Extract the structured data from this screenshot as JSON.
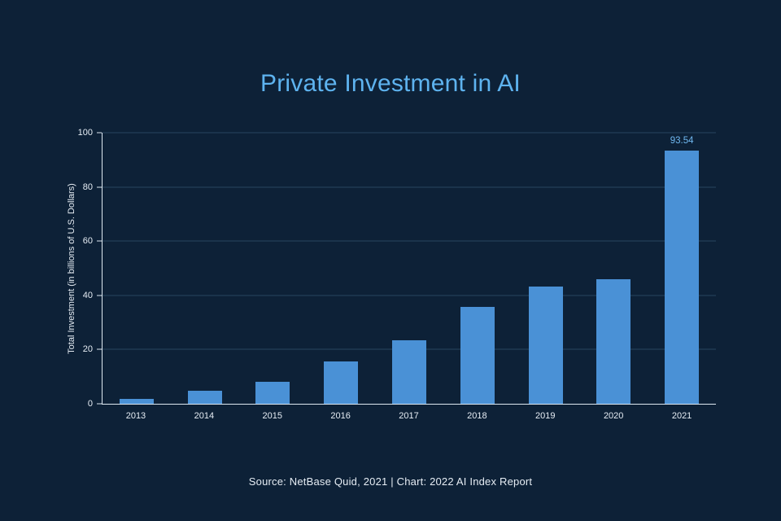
{
  "title": "Private Investment in AI",
  "source": "Source: NetBase Quid, 2021 | Chart: 2022 AI Index Report",
  "colors": {
    "background": "#0d2137",
    "title": "#5eb3ef",
    "bar": "#4a91d6",
    "axis": "#dde8f1",
    "gridline": "#26455f",
    "tick_text": "#e6edf4",
    "value_label": "#70b8f0"
  },
  "chart_data": {
    "type": "bar",
    "title": "Private Investment in AI",
    "categories": [
      "2013",
      "2014",
      "2015",
      "2016",
      "2017",
      "2018",
      "2019",
      "2020",
      "2021"
    ],
    "values": [
      1.8,
      4.8,
      8.0,
      15.6,
      23.3,
      35.6,
      43.1,
      46.0,
      93.54
    ],
    "value_labels": [
      "",
      "",
      "",
      "",
      "",
      "",
      "",
      "",
      "93.54"
    ],
    "xlabel": "",
    "ylabel": "Total Investment (in billions of U.S. Dollars)",
    "ylim": [
      0,
      100
    ],
    "yticks": [
      0,
      20,
      40,
      60,
      80,
      100
    ],
    "grid": true,
    "legend": false
  }
}
